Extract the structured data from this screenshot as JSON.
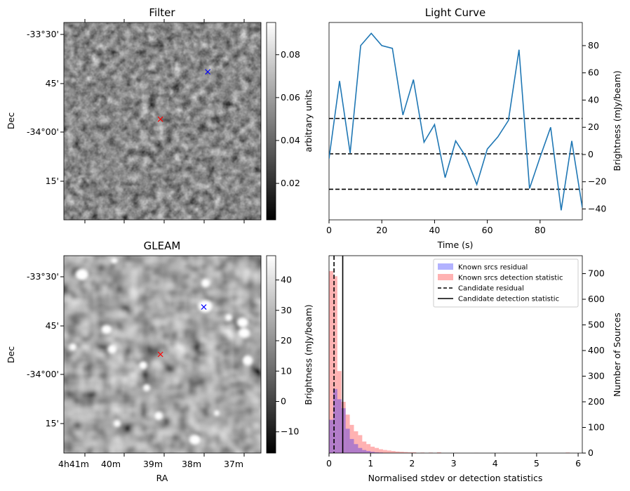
{
  "chart_data": [
    {
      "type": "heatmap",
      "title": "Filter",
      "ylabel": "Dec",
      "y_tick_labels": [
        "-33°30'",
        "45'",
        "-34°00'",
        "15'"
      ],
      "colorbar": {
        "label": "arbitrary units",
        "ticks": [
          "0.02",
          "0.04",
          "0.06",
          "0.08"
        ],
        "range": [
          0.003,
          0.095
        ],
        "colormap": "gray"
      },
      "markers": [
        {
          "color": "#0000ff",
          "symbol": "x",
          "ra_frac": 0.73,
          "dec_frac": 0.25
        },
        {
          "color": "#ff0000",
          "symbol": "x",
          "ra_frac": 0.49,
          "dec_frac": 0.49
        }
      ]
    },
    {
      "type": "line",
      "title": "Light Curve",
      "xlabel": "Time (s)",
      "ylabel": "Brightness (mJy/beam)",
      "xlim": [
        0,
        96
      ],
      "ylim": [
        -48,
        97
      ],
      "x_ticks": [
        0,
        20,
        40,
        60,
        80
      ],
      "y_ticks": [
        -40,
        -20,
        0,
        20,
        40,
        60,
        80
      ],
      "line_color": "#1f77b4",
      "x": [
        0,
        4,
        8,
        12,
        16,
        20,
        24,
        28,
        32,
        36,
        40,
        44,
        48,
        52,
        56,
        60,
        64,
        68,
        72,
        76,
        80,
        84,
        88,
        92,
        96
      ],
      "values": [
        -3,
        54,
        1,
        80,
        89,
        80,
        78,
        29,
        55,
        9,
        22,
        -17,
        10,
        -2,
        -22,
        4,
        13,
        25,
        77,
        -25,
        -2,
        20,
        -41,
        10,
        -39
      ],
      "hlines": [
        {
          "y": 26.5,
          "style": "dashed",
          "color": "#000000"
        },
        {
          "y": 0.5,
          "style": "dashed",
          "color": "#000000"
        },
        {
          "y": -25.5,
          "style": "dashed",
          "color": "#000000"
        }
      ]
    },
    {
      "type": "heatmap",
      "title": "GLEAM",
      "xlabel": "RA",
      "ylabel": "Dec",
      "x_tick_labels": [
        "4h41m",
        "40m",
        "39m",
        "38m",
        "37m"
      ],
      "y_tick_labels": [
        "-33°30'",
        "45'",
        "-34°00'",
        "15'"
      ],
      "colorbar": {
        "label": "Brightness (mJy/beam)",
        "ticks": [
          "−10",
          "0",
          "10",
          "20",
          "30",
          "40"
        ],
        "range": [
          -17,
          48
        ],
        "colormap": "gray"
      },
      "markers": [
        {
          "color": "#0000ff",
          "symbol": "x",
          "ra_frac": 0.71,
          "dec_frac": 0.26
        },
        {
          "color": "#ff0000",
          "symbol": "x",
          "ra_frac": 0.49,
          "dec_frac": 0.5
        }
      ]
    },
    {
      "type": "bar",
      "xlabel": "Normalised stdev or detection statistics",
      "ylabel_right": "Number of Sources",
      "xlim": [
        0,
        6.1
      ],
      "ylim": [
        0,
        770
      ],
      "x_ticks": [
        0,
        1,
        2,
        3,
        4,
        5,
        6
      ],
      "y_ticks": [
        0,
        100,
        200,
        300,
        400,
        500,
        600,
        700
      ],
      "bin_width": 0.1,
      "series": [
        {
          "name": "Known srcs residual",
          "color": "#0000ff",
          "bin_starts": [
            0.0,
            0.1,
            0.2,
            0.3,
            0.4,
            0.5,
            0.6,
            0.7,
            0.8,
            0.9,
            1.0,
            1.1,
            1.2
          ],
          "values": [
            130,
            250,
            210,
            175,
            95,
            55,
            35,
            20,
            12,
            8,
            5,
            3,
            2
          ]
        },
        {
          "name": "Known srcs detection statistic",
          "color": "#ff0000",
          "bin_starts": [
            0.0,
            0.1,
            0.2,
            0.3,
            0.4,
            0.5,
            0.6,
            0.7,
            0.8,
            0.9,
            1.0,
            1.1,
            1.2,
            1.3,
            1.4,
            1.5,
            1.6,
            1.7,
            1.8,
            1.9,
            2.0,
            2.2,
            2.4,
            2.6,
            3.0,
            3.5,
            4.2,
            5.7
          ],
          "values": [
            710,
            690,
            320,
            200,
            150,
            110,
            85,
            70,
            45,
            35,
            25,
            20,
            15,
            12,
            10,
            8,
            6,
            5,
            4,
            3,
            3,
            2,
            2,
            3,
            1,
            1,
            1,
            2
          ]
        }
      ],
      "vlines": [
        {
          "name": "Candidate residual",
          "x": 0.12,
          "style": "dashed",
          "color": "#000000"
        },
        {
          "name": "Candidate detection statistic",
          "x": 0.33,
          "style": "solid",
          "color": "#000000"
        }
      ],
      "legend_position": "top-right"
    }
  ]
}
